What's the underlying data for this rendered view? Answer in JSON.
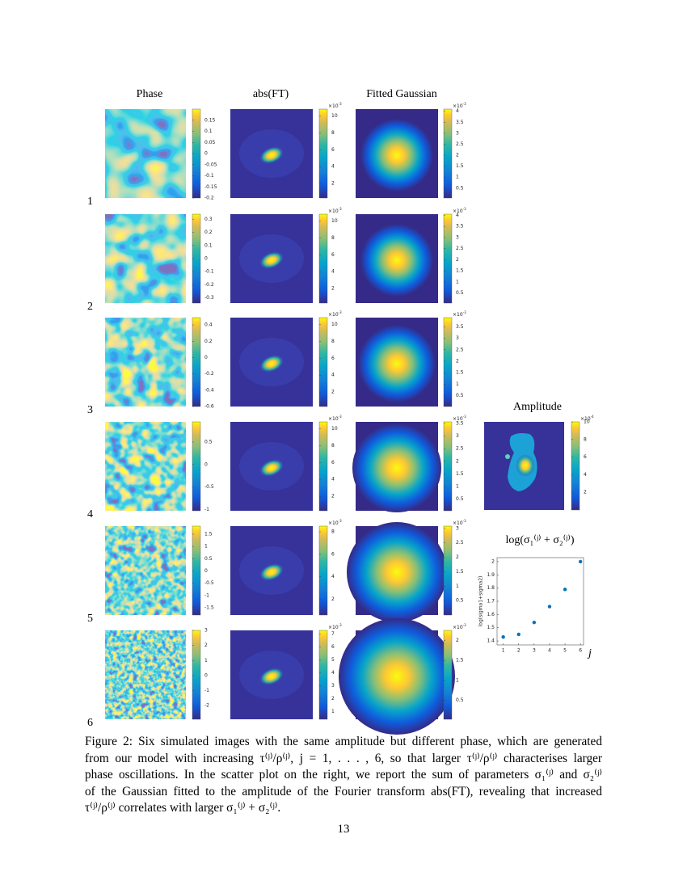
{
  "headers": [
    "Phase",
    "abs(FT)",
    "Fitted Gaussian"
  ],
  "base": "×10",
  "rows": [
    {
      "label": "1",
      "phase": {
        "lim": [
          -0.2,
          0.2
        ],
        "ticks": [
          0.15,
          0.1,
          0.05,
          0,
          -0.05,
          -0.1,
          -0.15,
          -0.2
        ]
      },
      "ft": {
        "exponent": "-3",
        "lim": [
          0.3,
          10.8
        ],
        "ticks": [
          10,
          8,
          6,
          4,
          2
        ]
      },
      "gauss": {
        "exponent": "-3",
        "lim": [
          0.05,
          4.1
        ],
        "ticks": [
          4,
          3.5,
          3,
          2.5,
          2,
          1.5,
          1,
          0.5
        ]
      }
    },
    {
      "label": "2",
      "phase": {
        "lim": [
          -0.34,
          0.34
        ],
        "ticks": [
          0.3,
          0.2,
          0.1,
          0,
          -0.1,
          -0.2,
          -0.3
        ]
      },
      "ft": {
        "exponent": "-3",
        "lim": [
          0.3,
          10.8
        ],
        "ticks": [
          10,
          8,
          6,
          4,
          2
        ]
      },
      "gauss": {
        "exponent": "-3",
        "lim": [
          0.05,
          4.05
        ],
        "ticks": [
          4,
          3.5,
          3,
          2.5,
          2,
          1.5,
          1,
          0.5
        ]
      }
    },
    {
      "label": "3",
      "phase": {
        "lim": [
          -0.6,
          0.49
        ],
        "ticks": [
          0.4,
          0.2,
          0,
          -0.2,
          -0.4,
          -0.6
        ]
      },
      "ft": {
        "exponent": "-3",
        "lim": [
          0.3,
          10.8
        ],
        "ticks": [
          10,
          8,
          6,
          4,
          2
        ]
      },
      "gauss": {
        "exponent": "-3",
        "lim": [
          0.03,
          3.9
        ],
        "ticks": [
          3.5,
          3,
          2.5,
          2,
          1.5,
          1,
          0.5
        ]
      }
    },
    {
      "label": "4",
      "phase": {
        "lim": [
          -1.03,
          0.95
        ],
        "ticks": [
          0.5,
          0,
          -0.5,
          -1
        ]
      },
      "ft": {
        "exponent": "-3",
        "lim": [
          0.3,
          10.8
        ],
        "ticks": [
          10,
          8,
          6,
          4,
          2
        ]
      },
      "gauss": {
        "exponent": "-3",
        "lim": [
          0.04,
          3.56
        ],
        "ticks": [
          3.5,
          3,
          2.5,
          2,
          1.5,
          1,
          0.5
        ]
      }
    },
    {
      "label": "5",
      "phase": {
        "lim": [
          -1.8,
          1.83
        ],
        "ticks": [
          1.5,
          1,
          0.5,
          0,
          -0.5,
          -1,
          -1.5
        ]
      },
      "ft": {
        "exponent": "-3",
        "lim": [
          0.6,
          8.5
        ],
        "ticks": [
          8,
          6,
          4,
          2
        ]
      },
      "gauss": {
        "exponent": "-3",
        "lim": [
          0,
          3.08
        ],
        "ticks": [
          3,
          2.5,
          2,
          1.5,
          1,
          0.5
        ]
      }
    },
    {
      "label": "6",
      "phase": {
        "lim": [
          -2.9,
          3.0
        ],
        "ticks": [
          3,
          2,
          1,
          0,
          -1,
          -2
        ]
      },
      "ft": {
        "exponent": "-3",
        "lim": [
          0.4,
          7.27
        ],
        "ticks": [
          7,
          6,
          5,
          4,
          3,
          2,
          1
        ]
      },
      "gauss": {
        "exponent": "-3",
        "lim": [
          0.03,
          2.25
        ],
        "ticks": [
          2,
          1.5,
          1,
          0.5
        ]
      }
    }
  ],
  "amplitude": {
    "title": "Amplitude",
    "exponent": "-4",
    "lim": [
      0,
      10
    ],
    "ticks": [
      10,
      8,
      6,
      4,
      2
    ]
  },
  "scatter": {
    "type": "scatter",
    "title": "log(σ₁⁽ʲ⁾ + σ₂⁽ʲ⁾)",
    "ylabel": "log(sigma1+sigma2)",
    "xlabel": "j",
    "x": [
      1,
      2,
      3,
      4,
      5,
      6
    ],
    "values": [
      1.43,
      1.45,
      1.54,
      1.66,
      1.79,
      2.0
    ],
    "color": "#0072bd",
    "xlim": [
      0.6,
      6.2
    ],
    "ylim": [
      1.37,
      2.03
    ],
    "xticks": [
      1,
      2,
      3,
      4,
      5,
      6
    ],
    "yticks": [
      1.4,
      1.5,
      1.6,
      1.7,
      1.8,
      1.9,
      2
    ]
  },
  "caption": [
    "Figure 2: Six simulated images with the same amplitude but different phase, which are generated",
    "from our model with increasing τ⁽ʲ⁾/ρ⁽ʲ⁾, j = 1, . . . , 6, so that larger τ⁽ʲ⁾/ρ⁽ʲ⁾ characterises larger",
    "phase oscillations. In the scatter plot on the right, we report the sum of parameters σ₁⁽ʲ⁾ and σ₂⁽ʲ⁾",
    "of the Gaussian fitted to the amplitude of the Fourier transform abs(FT), revealing that increased",
    "τ⁽ʲ⁾/ρ⁽ʲ⁾ correlates with larger σ₁⁽ʲ⁾ + σ₂⁽ʲ⁾."
  ],
  "page_number": "13"
}
